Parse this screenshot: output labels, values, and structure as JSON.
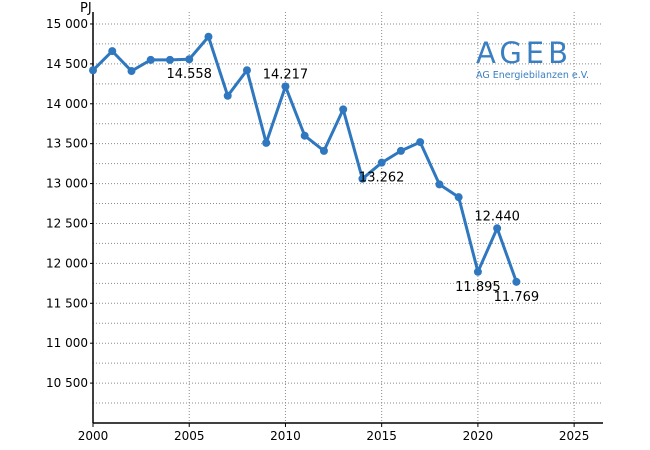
{
  "logo": {
    "main": "AGEB",
    "sub": "AG Energiebilanzen e.V."
  },
  "chart_data": {
    "type": "line",
    "ylabel": "PJ",
    "xlim": [
      2000,
      2026.5
    ],
    "ylim": [
      10000,
      15150
    ],
    "x_ticks": [
      2000,
      2005,
      2010,
      2015,
      2020,
      2025
    ],
    "x_tick_labels": [
      "2000",
      "2005",
      "2010",
      "2015",
      "2020",
      "2025"
    ],
    "y_ticks": [
      10500,
      11000,
      11500,
      12000,
      12500,
      13000,
      13500,
      14000,
      14500,
      15000
    ],
    "y_tick_labels": [
      "10 500",
      "11 000",
      "11 500",
      "12 000",
      "12 500",
      "13 000",
      "13 500",
      "14 000",
      "14 500",
      "15 000"
    ],
    "grid": true,
    "series": [
      {
        "color": "#2f78bf",
        "x": [
          2000,
          2001,
          2002,
          2003,
          2004,
          2005,
          2006,
          2007,
          2008,
          2009,
          2010,
          2011,
          2012,
          2013,
          2014,
          2015,
          2016,
          2017,
          2018,
          2019,
          2020,
          2021,
          2022
        ],
        "y": [
          14420,
          14660,
          14410,
          14550,
          14550,
          14558,
          14840,
          14100,
          14420,
          13510,
          14217,
          13600,
          13410,
          13930,
          13060,
          13262,
          13410,
          13520,
          12990,
          12830,
          11895,
          12440,
          11769
        ]
      }
    ],
    "data_labels": [
      {
        "x": 2005,
        "text": "14.558",
        "pos": "below"
      },
      {
        "x": 2010,
        "text": "14.217",
        "pos": "above"
      },
      {
        "x": 2015,
        "text": "13.262",
        "pos": "below"
      },
      {
        "x": 2020,
        "text": "11.895",
        "pos": "below"
      },
      {
        "x": 2021,
        "text": "12.440",
        "pos": "above"
      },
      {
        "x": 2022,
        "text": "11.769",
        "pos": "below"
      }
    ]
  }
}
